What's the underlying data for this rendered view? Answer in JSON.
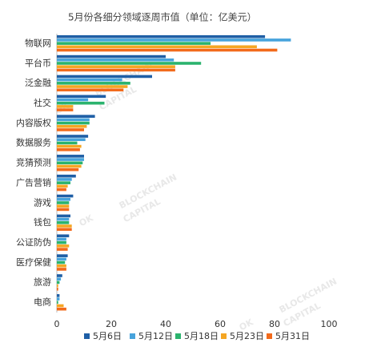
{
  "chart_data": {
    "type": "hbar",
    "title": "5月份各细分领域逐周市值（单位：亿美元）",
    "watermark": [
      "OK",
      "BLOCKCHAIN",
      "CAPITAL"
    ],
    "categories": [
      "物联网",
      "平台币",
      "泛金融",
      "社交",
      "内容版权",
      "数据服务",
      "竞猜预测",
      "广告营销",
      "游戏",
      "钱包",
      "公证防伪",
      "医疗保健",
      "旅游",
      "电商"
    ],
    "series": [
      {
        "name": "5月6日",
        "color": "#1f5fa6",
        "values": [
          76.5,
          40,
          35,
          18,
          14,
          11.5,
          10,
          7,
          6,
          5,
          4.5,
          4,
          2,
          1
        ]
      },
      {
        "name": "5月12日",
        "color": "#47a3dc",
        "values": [
          86,
          43,
          24,
          11.5,
          12,
          10.5,
          10,
          5.5,
          5,
          4.5,
          3.5,
          3.5,
          1.5,
          1
        ]
      },
      {
        "name": "5月18日",
        "color": "#2bb36e",
        "values": [
          56.5,
          53,
          27,
          17.5,
          12,
          7.5,
          9.5,
          5,
          4.5,
          4.5,
          3.5,
          3,
          1,
          0.5
        ]
      },
      {
        "name": "5月23日",
        "color": "#f5a623",
        "values": [
          73.5,
          43.5,
          26,
          6,
          11,
          9,
          9,
          4,
          4.5,
          5.5,
          4.5,
          3.5,
          0.5,
          2.5
        ]
      },
      {
        "name": "5月31日",
        "color": "#f26a1b",
        "values": [
          81,
          43.5,
          24.5,
          6,
          10,
          8.5,
          8,
          3.5,
          4.5,
          5.5,
          4,
          3.5,
          0.5,
          3.5
        ]
      }
    ],
    "xlim": [
      0,
      100
    ],
    "xticks": [
      0,
      20,
      40,
      60,
      80,
      100
    ]
  }
}
